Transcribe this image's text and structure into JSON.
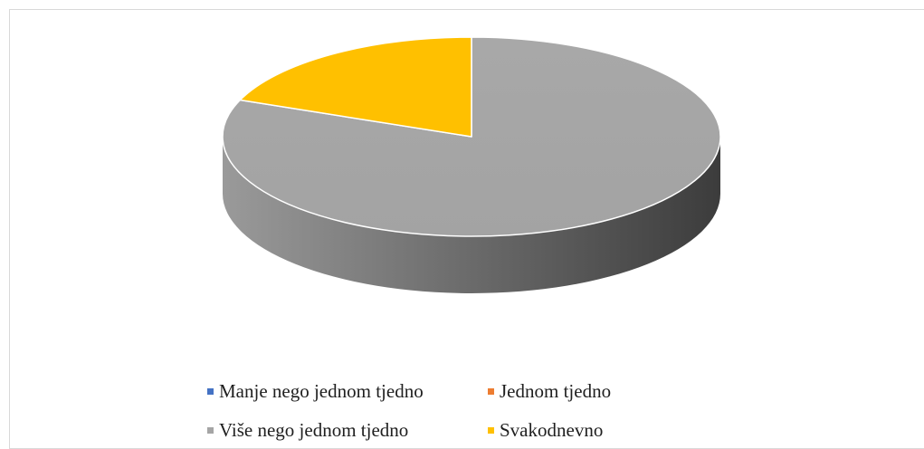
{
  "chart_data": {
    "type": "pie",
    "style": "3d",
    "title": "",
    "categories": [
      "Manje nego jednom tjedno",
      "Jednom tjedno",
      "Više nego jednom tjedno",
      "Svakodnevno"
    ],
    "values": [
      0,
      0,
      81,
      19
    ],
    "colors": [
      "#4472c4",
      "#ed7d31",
      "#a5a5a5",
      "#ffc000"
    ],
    "legend_position": "bottom"
  }
}
